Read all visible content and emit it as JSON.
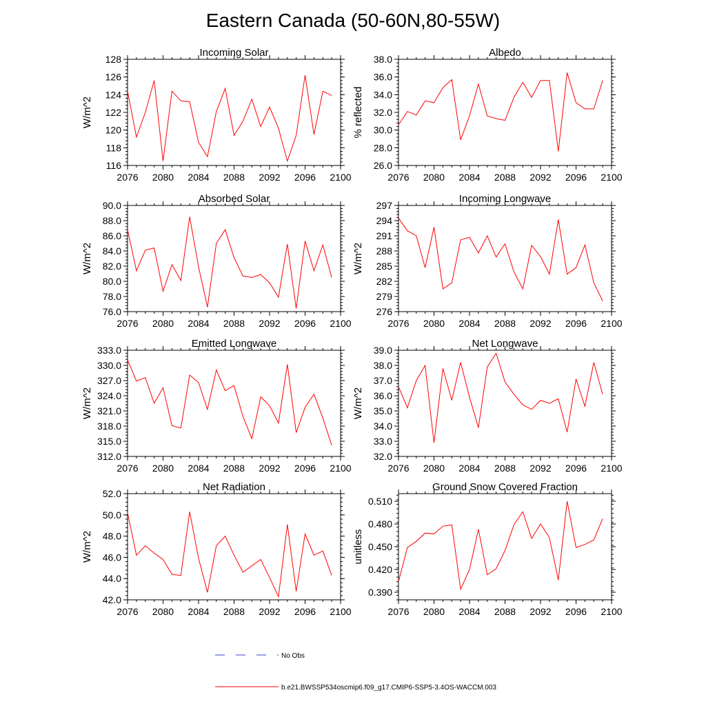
{
  "title": "Eastern Canada (50-60N,80-55W)",
  "legend": {
    "obs_label": "No Obs",
    "model_label": "b.e21.BWSSP534oscmip6.f09_g17.CMIP6-SSP5-3.4OS-WACCM.003",
    "obs_color": "#3344cc",
    "model_color": "#ff0000"
  },
  "chart_data": [
    {
      "type": "line",
      "title": "Incoming Solar",
      "ylabel": "W/m^2",
      "xlabel": "",
      "xlim": [
        2076,
        2100
      ],
      "ylim": [
        116,
        128
      ],
      "xticks": [
        "2076",
        "2080",
        "2084",
        "2088",
        "2092",
        "2096",
        "2100"
      ],
      "yticks": [
        "116",
        "118",
        "120",
        "122",
        "124",
        "126",
        "128"
      ],
      "x": [
        2076,
        2077,
        2078,
        2079,
        2080,
        2081,
        2082,
        2083,
        2084,
        2085,
        2086,
        2087,
        2088,
        2089,
        2090,
        2091,
        2092,
        2093,
        2094,
        2095,
        2096,
        2097,
        2098,
        2099
      ],
      "series": [
        {
          "name": "b.e21.BWSSP534oscmip6.f09_g17.CMIP6-SSP5-3.4OS-WACCM.003",
          "values": [
            124.4,
            119.2,
            122.0,
            125.6,
            116.5,
            124.4,
            123.3,
            123.2,
            118.6,
            117.0,
            122.1,
            124.7,
            119.4,
            121.0,
            123.5,
            120.4,
            122.6,
            120.2,
            116.5,
            119.4,
            126.2,
            119.5,
            124.4,
            123.9
          ]
        }
      ]
    },
    {
      "type": "line",
      "title": "Albedo",
      "ylabel": "% reflected",
      "xlabel": "",
      "xlim": [
        2076,
        2100
      ],
      "ylim": [
        26.0,
        38.0
      ],
      "xticks": [
        "2076",
        "2080",
        "2084",
        "2088",
        "2092",
        "2096",
        "2100"
      ],
      "yticks": [
        "26.0",
        "28.0",
        "30.0",
        "32.0",
        "34.0",
        "36.0",
        "38.0"
      ],
      "x": [
        2076,
        2077,
        2078,
        2079,
        2080,
        2081,
        2082,
        2083,
        2084,
        2085,
        2086,
        2087,
        2088,
        2089,
        2090,
        2091,
        2092,
        2093,
        2094,
        2095,
        2096,
        2097,
        2098,
        2099
      ],
      "series": [
        {
          "name": "b.e21.BWSSP534oscmip6.f09_g17.CMIP6-SSP5-3.4OS-WACCM.003",
          "values": [
            30.6,
            32.1,
            31.7,
            33.3,
            33.1,
            34.8,
            35.7,
            28.9,
            31.6,
            35.2,
            31.6,
            31.3,
            31.1,
            33.7,
            35.4,
            33.7,
            35.6,
            35.6,
            27.6,
            36.5,
            33.1,
            32.4,
            32.4,
            35.6
          ]
        }
      ]
    },
    {
      "type": "line",
      "title": "Absorbed Solar",
      "ylabel": "W/m^2",
      "xlabel": "",
      "xlim": [
        2076,
        2100
      ],
      "ylim": [
        76.0,
        90.0
      ],
      "xticks": [
        "2076",
        "2080",
        "2084",
        "2088",
        "2092",
        "2096",
        "2100"
      ],
      "yticks": [
        "76.0",
        "78.0",
        "80.0",
        "82.0",
        "84.0",
        "86.0",
        "88.0",
        "90.0"
      ],
      "x": [
        2076,
        2077,
        2078,
        2079,
        2080,
        2081,
        2082,
        2083,
        2084,
        2085,
        2086,
        2087,
        2088,
        2089,
        2090,
        2091,
        2092,
        2093,
        2094,
        2095,
        2096,
        2097,
        2098,
        2099
      ],
      "series": [
        {
          "name": "b.e21.BWSSP534oscmip6.f09_g17.CMIP6-SSP5-3.4OS-WACCM.003",
          "values": [
            86.8,
            81.4,
            84.1,
            84.4,
            78.7,
            82.2,
            80.1,
            88.5,
            81.9,
            76.6,
            85.0,
            86.8,
            83.1,
            80.7,
            80.5,
            80.9,
            79.8,
            77.9,
            84.9,
            76.4,
            85.3,
            81.4,
            84.8,
            80.5
          ]
        }
      ]
    },
    {
      "type": "line",
      "title": "Incoming Longwave",
      "ylabel": "W/m^2",
      "xlabel": "",
      "xlim": [
        2076,
        2100
      ],
      "ylim": [
        276,
        297
      ],
      "xticks": [
        "2076",
        "2080",
        "2084",
        "2088",
        "2092",
        "2096",
        "2100"
      ],
      "yticks": [
        "276",
        "279",
        "282",
        "285",
        "288",
        "291",
        "294",
        "297"
      ],
      "x": [
        2076,
        2077,
        2078,
        2079,
        2080,
        2081,
        2082,
        2083,
        2084,
        2085,
        2086,
        2087,
        2088,
        2089,
        2090,
        2091,
        2092,
        2093,
        2094,
        2095,
        2096,
        2097,
        2098,
        2099
      ],
      "series": [
        {
          "name": "b.e21.BWSSP534oscmip6.f09_g17.CMIP6-SSP5-3.4OS-WACCM.003",
          "values": [
            294.5,
            292.0,
            291.0,
            284.7,
            292.7,
            280.5,
            281.7,
            290.2,
            290.7,
            287.6,
            291.0,
            286.8,
            289.4,
            283.9,
            280.5,
            289.1,
            286.9,
            283.4,
            294.2,
            283.4,
            284.7,
            289.2,
            281.7,
            278.1
          ]
        }
      ]
    },
    {
      "type": "line",
      "title": "Emitted Longwave",
      "ylabel": "W/m^2",
      "xlabel": "",
      "xlim": [
        2076,
        2100
      ],
      "ylim": [
        312.0,
        333.0
      ],
      "xticks": [
        "2076",
        "2080",
        "2084",
        "2088",
        "2092",
        "2096",
        "2100"
      ],
      "yticks": [
        "312.0",
        "315.0",
        "318.0",
        "321.0",
        "324.0",
        "327.0",
        "330.0",
        "333.0"
      ],
      "x": [
        2076,
        2077,
        2078,
        2079,
        2080,
        2081,
        2082,
        2083,
        2084,
        2085,
        2086,
        2087,
        2088,
        2089,
        2090,
        2091,
        2092,
        2093,
        2094,
        2095,
        2096,
        2097,
        2098,
        2099
      ],
      "series": [
        {
          "name": "b.e21.BWSSP534oscmip6.f09_g17.CMIP6-SSP5-3.4OS-WACCM.003",
          "values": [
            331.1,
            326.9,
            327.6,
            322.5,
            325.6,
            318.1,
            317.6,
            328.1,
            326.6,
            321.3,
            329.1,
            325.0,
            326.0,
            319.9,
            315.5,
            323.8,
            322.0,
            318.6,
            330.2,
            316.7,
            321.7,
            324.3,
            319.6,
            314.2
          ]
        }
      ]
    },
    {
      "type": "line",
      "title": "Net Longwave",
      "ylabel": "W/m^2",
      "xlabel": "",
      "xlim": [
        2076,
        2100
      ],
      "ylim": [
        32.0,
        39.0
      ],
      "xticks": [
        "2076",
        "2080",
        "2084",
        "2088",
        "2092",
        "2096",
        "2100"
      ],
      "yticks": [
        "32.0",
        "33.0",
        "34.0",
        "35.0",
        "36.0",
        "37.0",
        "38.0",
        "39.0"
      ],
      "x": [
        2076,
        2077,
        2078,
        2079,
        2080,
        2081,
        2082,
        2083,
        2084,
        2085,
        2086,
        2087,
        2088,
        2089,
        2090,
        2091,
        2092,
        2093,
        2094,
        2095,
        2096,
        2097,
        2098,
        2099
      ],
      "series": [
        {
          "name": "b.e21.BWSSP534oscmip6.f09_g17.CMIP6-SSP5-3.4OS-WACCM.003",
          "values": [
            36.6,
            35.2,
            37.0,
            38.0,
            32.9,
            37.8,
            35.7,
            38.2,
            35.9,
            33.9,
            37.9,
            38.8,
            36.9,
            36.1,
            35.4,
            35.1,
            35.7,
            35.5,
            35.8,
            33.6,
            37.1,
            35.3,
            38.2,
            36.1
          ]
        }
      ]
    },
    {
      "type": "line",
      "title": "Net Radiation",
      "ylabel": "W/m^2",
      "xlabel": "",
      "xlim": [
        2076,
        2100
      ],
      "ylim": [
        42.0,
        52.0
      ],
      "xticks": [
        "2076",
        "2080",
        "2084",
        "2088",
        "2092",
        "2096",
        "2100"
      ],
      "yticks": [
        "42.0",
        "44.0",
        "46.0",
        "48.0",
        "50.0",
        "52.0"
      ],
      "x": [
        2076,
        2077,
        2078,
        2079,
        2080,
        2081,
        2082,
        2083,
        2084,
        2085,
        2086,
        2087,
        2088,
        2089,
        2090,
        2091,
        2092,
        2093,
        2094,
        2095,
        2096,
        2097,
        2098,
        2099
      ],
      "series": [
        {
          "name": "b.e21.BWSSP534oscmip6.f09_g17.CMIP6-SSP5-3.4OS-WACCM.003",
          "values": [
            50.2,
            46.2,
            47.1,
            46.4,
            45.8,
            44.4,
            44.3,
            50.3,
            45.9,
            42.7,
            47.1,
            48.0,
            46.2,
            44.6,
            45.2,
            45.8,
            44.1,
            42.3,
            49.1,
            42.8,
            48.2,
            46.2,
            46.6,
            44.3
          ]
        }
      ]
    },
    {
      "type": "line",
      "title": "Ground Snow Covered Fraction",
      "ylabel": "unitless",
      "xlabel": "",
      "xlim": [
        2076,
        2100
      ],
      "ylim": [
        0.38,
        0.52
      ],
      "xticks": [
        "2076",
        "2080",
        "2084",
        "2088",
        "2092",
        "2096",
        "2100"
      ],
      "yticks": [
        "0.390",
        "0.420",
        "0.450",
        "0.480",
        "0.510"
      ],
      "ytick_values": [
        0.39,
        0.42,
        0.45,
        0.48,
        0.51
      ],
      "x": [
        2076,
        2077,
        2078,
        2079,
        2080,
        2081,
        2082,
        2083,
        2084,
        2085,
        2086,
        2087,
        2088,
        2089,
        2090,
        2091,
        2092,
        2093,
        2094,
        2095,
        2096,
        2097,
        2098,
        2099
      ],
      "series": [
        {
          "name": "b.e21.BWSSP534oscmip6.f09_g17.CMIP6-SSP5-3.4OS-WACCM.003",
          "values": [
            0.404,
            0.449,
            0.457,
            0.468,
            0.467,
            0.477,
            0.479,
            0.394,
            0.42,
            0.473,
            0.413,
            0.421,
            0.445,
            0.479,
            0.496,
            0.461,
            0.48,
            0.462,
            0.406,
            0.51,
            0.449,
            0.453,
            0.459,
            0.487
          ]
        }
      ]
    }
  ]
}
